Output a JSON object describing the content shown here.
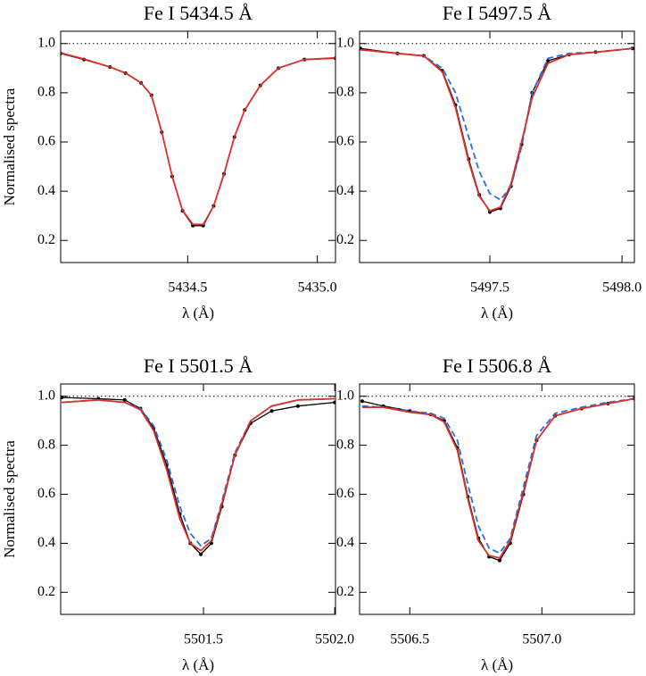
{
  "chart_data": [
    {
      "type": "line",
      "title": "Fe I  5434.5 Å",
      "xlabel": "λ (Å)",
      "ylabel": "Normalised spectra",
      "x": [
        5434.01,
        5434.1,
        5434.2,
        5434.26,
        5434.32,
        5434.36,
        5434.4,
        5434.44,
        5434.48,
        5434.52,
        5434.56,
        5434.6,
        5434.64,
        5434.68,
        5434.72,
        5434.78,
        5434.85,
        5434.95,
        5435.07
      ],
      "series": [
        {
          "color": "#000000",
          "markers": true,
          "values": [
            0.96,
            0.935,
            0.905,
            0.88,
            0.84,
            0.79,
            0.64,
            0.46,
            0.32,
            0.26,
            0.26,
            0.34,
            0.47,
            0.62,
            0.73,
            0.83,
            0.9,
            0.935,
            0.94
          ]
        },
        {
          "color": "#d9302a",
          "values": [
            0.962,
            0.937,
            0.905,
            0.88,
            0.84,
            0.79,
            0.64,
            0.46,
            0.322,
            0.265,
            0.265,
            0.34,
            0.47,
            0.62,
            0.73,
            0.83,
            0.9,
            0.935,
            0.942
          ]
        }
      ],
      "hline": 1.0,
      "xlim": [
        5434.01,
        5435.07
      ],
      "ylim": [
        0.11,
        1.05
      ],
      "xticks": [
        5434.5,
        {
          "value": 5435.0,
          "label": "5435.0"
        }
      ],
      "yticks": [
        0.2,
        0.4,
        0.6,
        0.8,
        {
          "value": 1.0,
          "label": "1.0"
        }
      ]
    },
    {
      "type": "line",
      "title": "Fe I  5497.5 Å",
      "xlabel": "λ (Å)",
      "x": [
        5497.01,
        5497.15,
        5497.25,
        5497.32,
        5497.37,
        5497.42,
        5497.46,
        5497.5,
        5497.54,
        5497.58,
        5497.62,
        5497.66,
        5497.72,
        5497.8,
        5497.9,
        5498.04
      ],
      "series": [
        {
          "color": "#000000",
          "markers": true,
          "values": [
            0.98,
            0.96,
            0.95,
            0.89,
            0.75,
            0.53,
            0.385,
            0.315,
            0.33,
            0.42,
            0.59,
            0.8,
            0.93,
            0.955,
            0.965,
            0.98
          ]
        },
        {
          "color": "#2a6fdb",
          "dash": true,
          "values": [
            0.975,
            0.96,
            0.95,
            0.9,
            0.8,
            0.62,
            0.48,
            0.39,
            0.365,
            0.42,
            0.58,
            0.8,
            0.94,
            0.96,
            0.965,
            0.98
          ]
        },
        {
          "color": "#d9302a",
          "values": [
            0.975,
            0.96,
            0.95,
            0.885,
            0.74,
            0.52,
            0.38,
            0.32,
            0.335,
            0.43,
            0.6,
            0.78,
            0.92,
            0.955,
            0.965,
            0.98
          ]
        }
      ],
      "hline": 1.0,
      "xlim": [
        5497.007,
        5498.047
      ],
      "ylim": [
        0.11,
        1.05
      ],
      "xticks": [
        5497.5,
        {
          "value": 5498.0,
          "label": "5498.0"
        }
      ],
      "yticks": [
        0.2,
        0.4,
        0.6,
        0.8,
        {
          "value": 1.0,
          "label": "1.0"
        }
      ]
    },
    {
      "type": "line",
      "title": "Fe I  5501.5 Å",
      "xlabel": "λ (Å)",
      "ylabel": "Normalised spectra",
      "x": [
        5500.96,
        5501.1,
        5501.2,
        5501.26,
        5501.31,
        5501.36,
        5501.41,
        5501.45,
        5501.49,
        5501.53,
        5501.57,
        5501.62,
        5501.68,
        5501.76,
        5501.86,
        5502.0
      ],
      "series": [
        {
          "color": "#000000",
          "markers": true,
          "values": [
            0.995,
            0.99,
            0.985,
            0.95,
            0.87,
            0.72,
            0.52,
            0.4,
            0.355,
            0.4,
            0.55,
            0.76,
            0.89,
            0.94,
            0.96,
            0.975
          ]
        },
        {
          "color": "#2a6fdb",
          "dash": true,
          "values": [
            0.975,
            0.985,
            0.975,
            0.95,
            0.88,
            0.74,
            0.55,
            0.44,
            0.39,
            0.42,
            0.57,
            0.77,
            0.9,
            0.96,
            0.985,
            0.99
          ]
        },
        {
          "color": "#d9302a",
          "values": [
            0.975,
            0.985,
            0.975,
            0.945,
            0.86,
            0.7,
            0.5,
            0.4,
            0.37,
            0.41,
            0.56,
            0.76,
            0.9,
            0.96,
            0.985,
            0.99
          ]
        }
      ],
      "hline": 1.0,
      "xlim": [
        5500.956,
        5502.003
      ],
      "ylim": [
        0.11,
        1.05
      ],
      "xticks": [
        5501.5,
        {
          "value": 5502.0,
          "label": "5502.0"
        }
      ],
      "yticks": [
        0.2,
        0.4,
        0.6,
        0.8,
        {
          "value": 1.0,
          "label": "1.0"
        }
      ]
    },
    {
      "type": "line",
      "title": "Fe I  5506.8 Å",
      "xlabel": "λ (Å)",
      "x": [
        5506.32,
        5506.4,
        5506.5,
        5506.58,
        5506.63,
        5506.68,
        5506.72,
        5506.76,
        5506.8,
        5506.84,
        5506.88,
        5506.93,
        5506.98,
        5507.05,
        5507.15,
        5507.25,
        5507.35
      ],
      "series": [
        {
          "color": "#000000",
          "markers": true,
          "values": [
            0.98,
            0.96,
            0.94,
            0.925,
            0.9,
            0.79,
            0.59,
            0.42,
            0.345,
            0.33,
            0.4,
            0.6,
            0.82,
            0.92,
            0.95,
            0.97,
            0.99
          ]
        },
        {
          "color": "#2a6fdb",
          "dash": true,
          "values": [
            0.96,
            0.955,
            0.94,
            0.93,
            0.91,
            0.82,
            0.64,
            0.47,
            0.38,
            0.36,
            0.42,
            0.63,
            0.84,
            0.93,
            0.955,
            0.975,
            0.99
          ]
        },
        {
          "color": "#d9302a",
          "values": [
            0.955,
            0.955,
            0.935,
            0.925,
            0.895,
            0.78,
            0.58,
            0.41,
            0.35,
            0.34,
            0.41,
            0.61,
            0.82,
            0.92,
            0.95,
            0.97,
            0.99
          ]
        }
      ],
      "hline": 1.0,
      "xlim": [
        5506.31,
        5507.35
      ],
      "ylim": [
        0.11,
        1.05
      ],
      "xticks": [
        5506.5,
        {
          "value": 5507.0,
          "label": "5507.0"
        }
      ],
      "yticks": [
        0.2,
        0.4,
        0.6,
        0.8,
        {
          "value": 1.0,
          "label": "1.0"
        }
      ]
    }
  ]
}
